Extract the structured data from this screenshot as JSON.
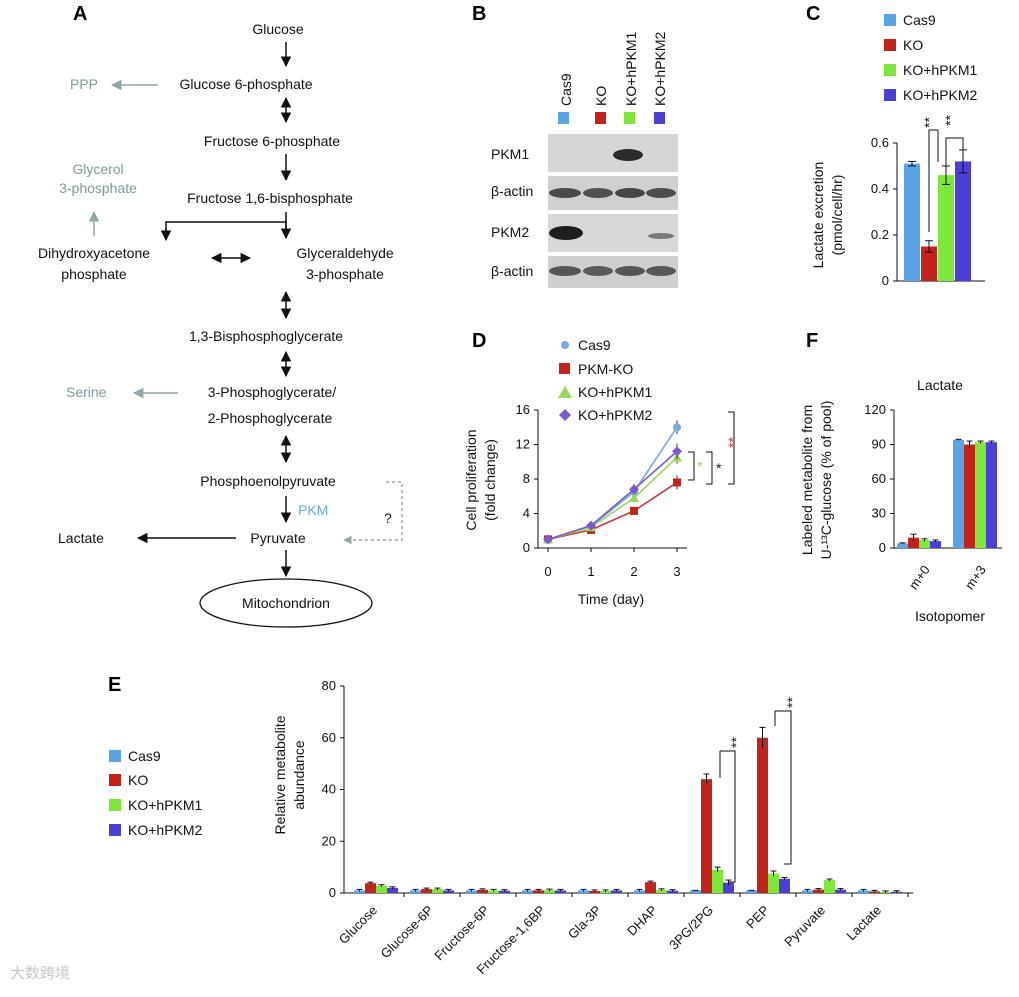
{
  "panel_labels": {
    "a": "A",
    "b": "B",
    "c": "C",
    "d": "D",
    "e": "E",
    "f": "F"
  },
  "colors": {
    "cas9": "#5aa5e6",
    "ko": "#c4231b",
    "hpkm1": "#7de83a",
    "hpkm2": "#4b3fd8",
    "line_cas9": "#7aa9dd",
    "line_ko": "#c8393f",
    "line_hpkm1": "#9ad660",
    "line_hpkm2": "#7b5ad0"
  },
  "pathway": {
    "glucose": "Glucose",
    "g6p": "Glucose 6-phosphate",
    "ppp": "PPP",
    "f6p": "Fructose 6-phosphate",
    "f16bp": "Fructose 1,6-bisphosphate",
    "glycerol_l1": "Glycerol",
    "glycerol_l2": "3-phosphate",
    "dhap_l1": "Dihydroxyacetone",
    "dhap_l2": "phosphate",
    "g3p_l1": "Glyceraldehyde",
    "g3p_l2": "3-phosphate",
    "bpg": "1,3-Bisphosphoglycerate",
    "serine": "Serine",
    "pg_l1": "3-Phosphoglycerate/",
    "pg_l2": "2-Phosphoglycerate",
    "pep": "Phosphoenolpyruvate",
    "pkm": "PKM",
    "question": "?",
    "lactate": "Lactate",
    "pyruvate": "Pyruvate",
    "mito": "Mitochondrion"
  },
  "blot": {
    "lanes": [
      "Cas9",
      "KO",
      "KO+hPKM1",
      "KO+hPKM2"
    ],
    "rows": [
      "PKM1",
      "β-actin",
      "PKM2",
      "β-actin"
    ]
  },
  "chart_data": [
    {
      "panel": "C",
      "type": "bar",
      "ylabel_l1": "Lactate excretion",
      "ylabel_l2": "(pmol/cell/hr)",
      "ylim": [
        0,
        0.6
      ],
      "yticks": [
        "0",
        "0.2",
        "0.4",
        "0.6"
      ],
      "series": [
        {
          "name": "Cas9",
          "value": 0.51,
          "err": 0.01
        },
        {
          "name": "KO",
          "value": 0.15,
          "err": 0.025
        },
        {
          "name": "KO+hPKM1",
          "value": 0.46,
          "err": 0.04
        },
        {
          "name": "KO+hPKM2",
          "value": 0.52,
          "err": 0.05
        }
      ],
      "sig": [
        "**",
        "**"
      ]
    },
    {
      "panel": "D",
      "type": "line",
      "xlabel": "Time (day)",
      "ylabel_l1": "Cell proliferation",
      "ylabel_l2": "(fold change)",
      "x": [
        0,
        1,
        2,
        3
      ],
      "xticks": [
        "0",
        "1",
        "2",
        "3"
      ],
      "ylim": [
        0,
        16
      ],
      "yticks": [
        "0",
        "4",
        "8",
        "12",
        "16"
      ],
      "series": [
        {
          "name": "Cas9",
          "values": [
            1,
            2.5,
            6.5,
            14
          ],
          "err": [
            0.1,
            0.2,
            0.6,
            0.8
          ]
        },
        {
          "name": "PKM-KO",
          "values": [
            1,
            2.1,
            4.3,
            7.6
          ],
          "err": [
            0.1,
            0.2,
            0.4,
            0.8
          ]
        },
        {
          "name": "KO+hPKM1",
          "values": [
            1,
            2.4,
            5.8,
            10.5
          ],
          "err": [
            0.1,
            0.2,
            0.5,
            0.7
          ]
        },
        {
          "name": "KO+hPKM2",
          "values": [
            1,
            2.6,
            6.8,
            11.2
          ],
          "err": [
            0.1,
            0.2,
            0.6,
            0.9
          ]
        }
      ],
      "sig": [
        "**",
        "*",
        "*"
      ]
    },
    {
      "panel": "F",
      "type": "bar",
      "title": "Lactate",
      "xlabel": "Isotopomer",
      "ylabel_l1": "Labeled metabolite from",
      "ylabel_l2": "U-¹³C-glucose (% of pool)",
      "categories": [
        "m+0",
        "m+3"
      ],
      "ylim": [
        0,
        120
      ],
      "yticks": [
        "0",
        "30",
        "60",
        "90",
        "120"
      ],
      "series": [
        {
          "name": "Cas9",
          "values": [
            4,
            94
          ],
          "err": [
            0.5,
            0.5
          ]
        },
        {
          "name": "KO",
          "values": [
            9,
            90
          ],
          "err": [
            3,
            3
          ]
        },
        {
          "name": "KO+hPKM1",
          "values": [
            7,
            92
          ],
          "err": [
            1,
            1
          ]
        },
        {
          "name": "KO+hPKM2",
          "values": [
            6,
            92
          ],
          "err": [
            1,
            1
          ]
        }
      ]
    },
    {
      "panel": "E",
      "type": "bar",
      "ylabel_l1": "Relative metabolite",
      "ylabel_l2": "abundance",
      "categories": [
        "Glucose",
        "Glucose-6P",
        "Fructose-6P",
        "Fructose-1,6BP",
        "Gla-3P",
        "DHAP",
        "3PG/2PG",
        "PEP",
        "Pyruvate",
        "Lactate"
      ],
      "ylim": [
        0,
        80
      ],
      "yticks": [
        "0",
        "20",
        "40",
        "60",
        "80"
      ],
      "series": [
        {
          "name": "Cas9",
          "values": [
            1,
            1,
            1,
            1,
            1,
            1,
            1,
            1,
            1,
            1
          ]
        },
        {
          "name": "KO",
          "values": [
            3.8,
            1.5,
            1.2,
            1,
            0.8,
            4.2,
            44,
            60,
            1.3,
            0.6
          ]
        },
        {
          "name": "KO+hPKM1",
          "values": [
            2.8,
            1.5,
            1,
            1.1,
            0.8,
            1.2,
            9,
            7.5,
            5,
            0.4
          ]
        },
        {
          "name": "KO+hPKM2",
          "values": [
            2,
            1,
            0.9,
            1,
            1,
            0.9,
            4,
            5.5,
            1.3,
            0.5
          ]
        }
      ],
      "err": {
        "3PG/2PG": [
          0,
          2,
          1,
          1
        ],
        "PEP": [
          0,
          4,
          1,
          0.5
        ]
      },
      "sig": [
        "**",
        "**"
      ]
    }
  ],
  "legend_c": [
    "Cas9",
    "KO",
    "KO+hPKM1",
    "KO+hPKM2"
  ],
  "legend_d": [
    "Cas9",
    "PKM-KO",
    "KO+hPKM1",
    "KO+hPKM2"
  ],
  "legend_e": [
    "Cas9",
    "KO",
    "KO+hPKM1",
    "KO+hPKM2"
  ],
  "watermark": "大数跨境"
}
